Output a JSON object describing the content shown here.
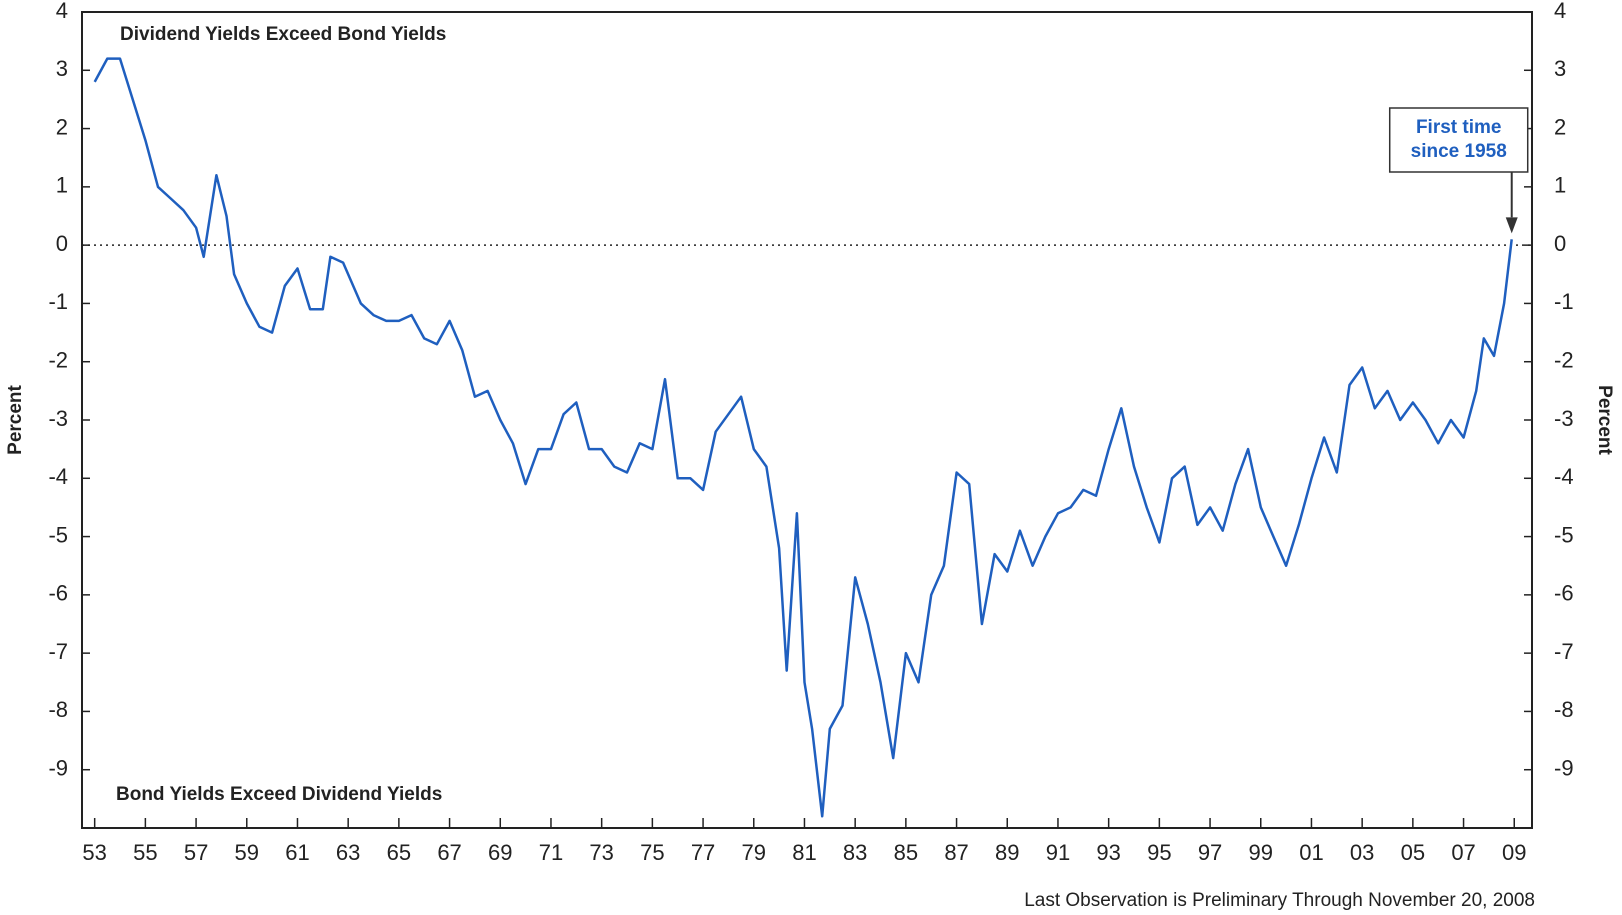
{
  "chart_data": {
    "type": "line",
    "y_label": "Percent",
    "y2_label": "Percent",
    "annotations": [
      "Dividend Yields Exceed Bond Yields",
      "Bond Yields Exceed Dividend Yields"
    ],
    "callout": [
      "First time",
      "since 1958"
    ],
    "footnote": "Last Observation is Preliminary Through November 20, 2008",
    "reference_line": 0,
    "xlim": [
      1952.5,
      2009.7
    ],
    "xticks": [
      {
        "value": 1953,
        "label": "53"
      },
      {
        "value": 1955,
        "label": "55"
      },
      {
        "value": 1957,
        "label": "57"
      },
      {
        "value": 1959,
        "label": "59"
      },
      {
        "value": 1961,
        "label": "61"
      },
      {
        "value": 1963,
        "label": "63"
      },
      {
        "value": 1965,
        "label": "65"
      },
      {
        "value": 1967,
        "label": "67"
      },
      {
        "value": 1969,
        "label": "69"
      },
      {
        "value": 1971,
        "label": "71"
      },
      {
        "value": 1973,
        "label": "73"
      },
      {
        "value": 1975,
        "label": "75"
      },
      {
        "value": 1977,
        "label": "77"
      },
      {
        "value": 1979,
        "label": "79"
      },
      {
        "value": 1981,
        "label": "81"
      },
      {
        "value": 1983,
        "label": "83"
      },
      {
        "value": 1985,
        "label": "85"
      },
      {
        "value": 1987,
        "label": "87"
      },
      {
        "value": 1989,
        "label": "89"
      },
      {
        "value": 1991,
        "label": "91"
      },
      {
        "value": 1993,
        "label": "93"
      },
      {
        "value": 1995,
        "label": "95"
      },
      {
        "value": 1997,
        "label": "97"
      },
      {
        "value": 1999,
        "label": "99"
      },
      {
        "value": 2001,
        "label": "01"
      },
      {
        "value": 2003,
        "label": "03"
      },
      {
        "value": 2005,
        "label": "05"
      },
      {
        "value": 2007,
        "label": "07"
      },
      {
        "value": 2009,
        "label": "09"
      }
    ],
    "ylim": [
      -10,
      4
    ],
    "yticks": [
      4,
      3,
      2,
      1,
      0,
      -1,
      -2,
      -3,
      -4,
      -5,
      -6,
      -7,
      -8,
      -9
    ],
    "y2lim": [
      -10,
      4
    ],
    "y2ticks": [
      4,
      3,
      2,
      1,
      0,
      -1,
      -2,
      -3,
      -4,
      -5,
      -6,
      -7,
      -8,
      -9
    ],
    "x": [
      1953.0,
      1953.5,
      1954.0,
      1954.5,
      1955.0,
      1955.5,
      1956.0,
      1956.5,
      1957.0,
      1957.3,
      1957.8,
      1958.2,
      1958.5,
      1959.0,
      1959.5,
      1960.0,
      1960.5,
      1961.0,
      1961.5,
      1962.0,
      1962.3,
      1962.8,
      1963.5,
      1964.0,
      1964.5,
      1965.0,
      1965.5,
      1966.0,
      1966.5,
      1967.0,
      1967.5,
      1968.0,
      1968.5,
      1969.0,
      1969.5,
      1970.0,
      1970.5,
      1971.0,
      1971.5,
      1972.0,
      1972.5,
      1973.0,
      1973.5,
      1974.0,
      1974.5,
      1975.0,
      1975.5,
      1976.0,
      1976.5,
      1977.0,
      1977.5,
      1978.0,
      1978.5,
      1979.0,
      1979.5,
      1980.0,
      1980.3,
      1980.7,
      1981.0,
      1981.3,
      1981.7,
      1982.0,
      1982.5,
      1983.0,
      1983.5,
      1984.0,
      1984.5,
      1985.0,
      1985.5,
      1986.0,
      1986.5,
      1987.0,
      1987.5,
      1988.0,
      1988.5,
      1989.0,
      1989.5,
      1990.0,
      1990.5,
      1991.0,
      1991.5,
      1992.0,
      1992.5,
      1993.0,
      1993.5,
      1994.0,
      1994.5,
      1995.0,
      1995.5,
      1996.0,
      1996.5,
      1997.0,
      1997.5,
      1998.0,
      1998.5,
      1999.0,
      1999.5,
      2000.0,
      2000.5,
      2001.0,
      2001.5,
      2002.0,
      2002.5,
      2003.0,
      2003.5,
      2004.0,
      2004.5,
      2005.0,
      2005.5,
      2006.0,
      2006.5,
      2007.0,
      2007.5,
      2007.8,
      2008.2,
      2008.6,
      2008.9
    ],
    "series": [
      {
        "color": "#1f5fbf",
        "values": [
          2.8,
          3.2,
          3.2,
          2.5,
          1.8,
          1.0,
          0.8,
          0.6,
          0.3,
          -0.2,
          1.2,
          0.5,
          -0.5,
          -1.0,
          -1.4,
          -1.5,
          -0.7,
          -0.4,
          -1.1,
          -1.1,
          -0.2,
          -0.3,
          -1.0,
          -1.2,
          -1.3,
          -1.3,
          -1.2,
          -1.6,
          -1.7,
          -1.3,
          -1.8,
          -2.6,
          -2.5,
          -3.0,
          -3.4,
          -4.1,
          -3.5,
          -3.5,
          -2.9,
          -2.7,
          -3.5,
          -3.5,
          -3.8,
          -3.9,
          -3.4,
          -3.5,
          -2.3,
          -4.0,
          -4.0,
          -4.2,
          -3.2,
          -2.9,
          -2.6,
          -3.5,
          -3.8,
          -5.2,
          -7.3,
          -4.6,
          -7.5,
          -8.3,
          -9.8,
          -8.3,
          -7.9,
          -5.7,
          -6.5,
          -7.5,
          -8.8,
          -7.0,
          -7.5,
          -6.0,
          -5.5,
          -3.9,
          -4.1,
          -6.5,
          -5.3,
          -5.6,
          -4.9,
          -5.5,
          -5.0,
          -4.6,
          -4.5,
          -4.2,
          -4.3,
          -3.5,
          -2.8,
          -3.8,
          -4.5,
          -5.1,
          -4.0,
          -3.8,
          -4.8,
          -4.5,
          -4.9,
          -4.1,
          -3.5,
          -4.5,
          -5.0,
          -5.5,
          -4.8,
          -4.0,
          -3.3,
          -3.9,
          -2.4,
          -2.1,
          -2.8,
          -2.5,
          -3.0,
          -2.7,
          -3.0,
          -3.4,
          -3.0,
          -3.3,
          -2.5,
          -1.6,
          -1.9,
          -1.0,
          0.1
        ]
      }
    ]
  }
}
